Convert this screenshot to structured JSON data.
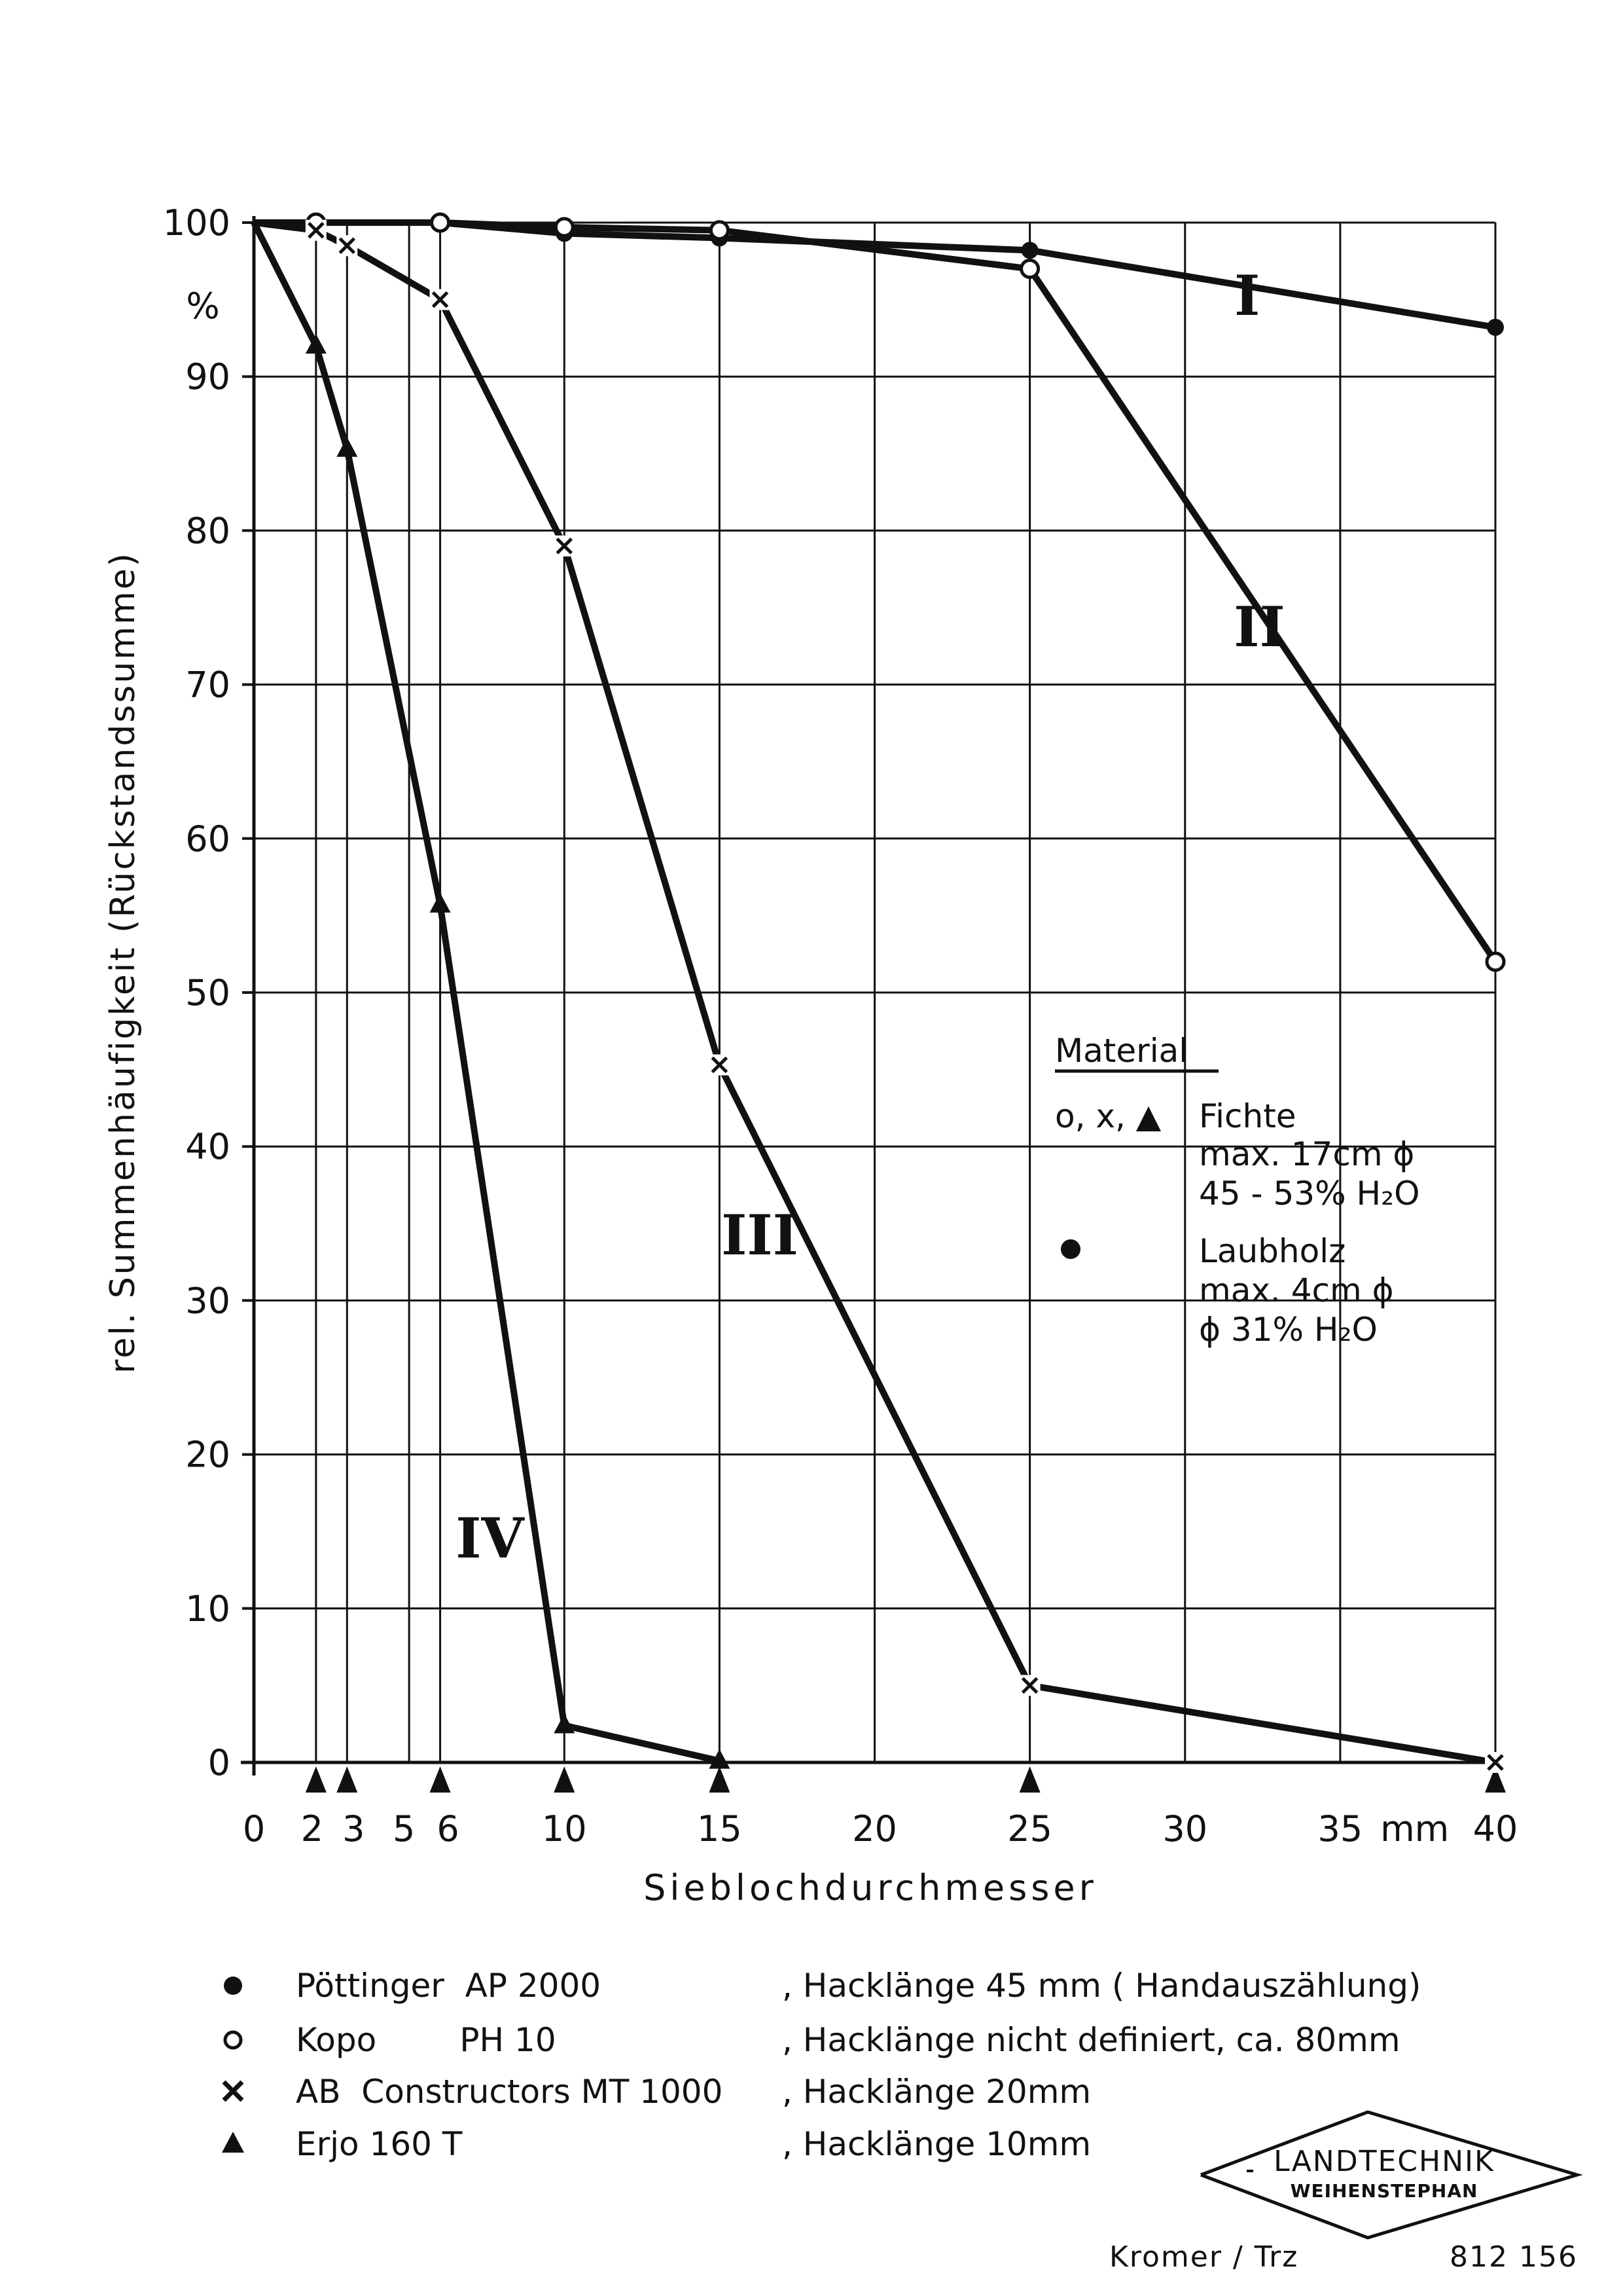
{
  "chart_data": {
    "type": "line",
    "ylabel": "rel. Summenhäufigkeit (Rückstandssumme)",
    "yunit": "%",
    "xlabel": "Siebloch­durchmesser",
    "xunit": "mm",
    "xlim": [
      0,
      40
    ],
    "ylim": [
      0,
      100
    ],
    "x_ticks": [
      {
        "v": 0,
        "label": "0"
      },
      {
        "v": 2,
        "label": "2"
      },
      {
        "v": 3,
        "label": "3"
      },
      {
        "v": 5,
        "label": "5"
      },
      {
        "v": 6,
        "label": "6"
      },
      {
        "v": 10,
        "label": "10"
      },
      {
        "v": 15,
        "label": "15"
      },
      {
        "v": 20,
        "label": "20"
      },
      {
        "v": 25,
        "label": "25"
      },
      {
        "v": 30,
        "label": "30"
      },
      {
        "v": 35,
        "label": "35"
      },
      {
        "v": 40,
        "label": "40"
      }
    ],
    "x_unit_label": "mm",
    "y_ticks": [
      0,
      10,
      20,
      30,
      40,
      50,
      60,
      70,
      80,
      90,
      100
    ],
    "sieve_markers": [
      2,
      3,
      6,
      10,
      15,
      25,
      40
    ],
    "grid": true,
    "series": [
      {
        "name": "I",
        "marker": "filled-circle",
        "points": [
          [
            0,
            100
          ],
          [
            2,
            100
          ],
          [
            6,
            100
          ],
          [
            10,
            99.3
          ],
          [
            15,
            99
          ],
          [
            25,
            98.2
          ],
          [
            40,
            93.2
          ]
        ],
        "label_at": [
          32,
          94
        ]
      },
      {
        "name": "II",
        "marker": "open-circle",
        "points": [
          [
            0,
            100
          ],
          [
            2,
            100
          ],
          [
            6,
            100
          ],
          [
            10,
            99.7
          ],
          [
            15,
            99.5
          ],
          [
            25,
            97
          ],
          [
            40,
            52
          ]
        ],
        "label_at": [
          32.4,
          72.5
        ]
      },
      {
        "name": "III",
        "marker": "cross",
        "points": [
          [
            0,
            100
          ],
          [
            2,
            99.5
          ],
          [
            3,
            98.5
          ],
          [
            6,
            95
          ],
          [
            10,
            79
          ],
          [
            15,
            45.3
          ],
          [
            25,
            5
          ],
          [
            40,
            0
          ]
        ],
        "label_at": [
          16.3,
          33
        ]
      },
      {
        "name": "IV",
        "marker": "triangle",
        "points": [
          [
            0,
            100
          ],
          [
            2,
            92
          ],
          [
            3,
            85.3
          ],
          [
            6,
            55.7
          ],
          [
            10,
            2.4
          ],
          [
            15,
            0.1
          ]
        ],
        "label_at": [
          7.6,
          13.3
        ]
      }
    ]
  },
  "material_box": {
    "heading": "Material",
    "entry1_symbols": "o, x, ▲",
    "entry1_name": "Fichte",
    "entry1_line2": "max. 17cm ϕ",
    "entry1_line3": "45 - 53%  H₂O",
    "entry2_name": "Laubholz",
    "entry2_line2": "max. 4cm ϕ",
    "entry2_line3": "ϕ 31%  H₂O"
  },
  "legend": [
    {
      "marker": "filled-circle",
      "machine": "Pöttinger  AP 2000",
      "detail": ", Hacklänge 45 mm ( Handauszählung)"
    },
    {
      "marker": "open-circle",
      "machine": "Kopo        PH 10",
      "detail": ", Hacklänge nicht definiert, ca. 80mm"
    },
    {
      "marker": "cross",
      "machine": "AB  Constructors MT 1000",
      "detail": ", Hacklänge  20mm"
    },
    {
      "marker": "triangle",
      "machine": "Erjo 160 T",
      "detail": ", Hacklänge  10mm"
    }
  ],
  "logo": {
    "line1": "LANDTECHNIK",
    "line2": "WEIHENSTEPHAN"
  },
  "footer": {
    "author": "Kromer / Trz",
    "number": "812 156"
  }
}
